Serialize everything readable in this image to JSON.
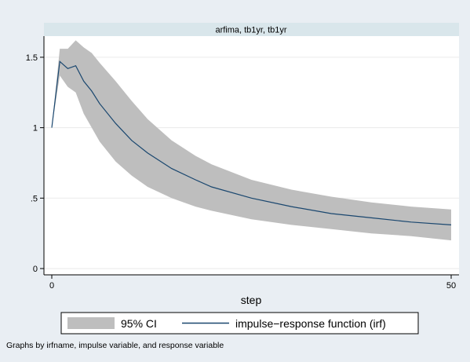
{
  "chart_data": {
    "type": "line",
    "panel_title": "arfima, tb1yr, tb1yr",
    "xlabel": "step",
    "ylabel": "",
    "xlim": [
      0,
      50
    ],
    "ylim": [
      0,
      1.65
    ],
    "x_ticks": [
      0,
      50
    ],
    "x_tick_labels": [
      "0",
      "50"
    ],
    "y_ticks": [
      0,
      0.5,
      1,
      1.5
    ],
    "y_tick_labels": [
      "0",
      ".5",
      "1",
      "1.5"
    ],
    "grid": true,
    "legend_position": "bottom",
    "series": [
      {
        "name": "95% CI",
        "kind": "band",
        "color": "#bebebe",
        "x": [
          0,
          1,
          2,
          3,
          4,
          5,
          6,
          8,
          10,
          12,
          15,
          18,
          20,
          25,
          30,
          35,
          40,
          45,
          50
        ],
        "lower": [
          1.0,
          1.37,
          1.29,
          1.25,
          1.1,
          1.0,
          0.9,
          0.76,
          0.66,
          0.58,
          0.5,
          0.44,
          0.41,
          0.35,
          0.31,
          0.28,
          0.25,
          0.23,
          0.2
        ],
        "upper": [
          1.0,
          1.56,
          1.56,
          1.62,
          1.57,
          1.53,
          1.46,
          1.33,
          1.19,
          1.06,
          0.91,
          0.8,
          0.74,
          0.63,
          0.56,
          0.51,
          0.47,
          0.44,
          0.42
        ]
      },
      {
        "name": "impulse−response function (irf)",
        "kind": "line",
        "color": "#1a476f",
        "x": [
          0,
          1,
          2,
          3,
          4,
          5,
          6,
          8,
          10,
          12,
          15,
          18,
          20,
          25,
          30,
          35,
          40,
          45,
          50
        ],
        "values": [
          1.0,
          1.47,
          1.42,
          1.44,
          1.33,
          1.26,
          1.17,
          1.03,
          0.91,
          0.82,
          0.71,
          0.63,
          0.58,
          0.5,
          0.44,
          0.39,
          0.36,
          0.33,
          0.31
        ]
      }
    ],
    "legend": [
      {
        "label": "95% CI",
        "swatch": "band"
      },
      {
        "label": "impulse−response function (irf)",
        "swatch": "line"
      }
    ],
    "note": "Graphs by irfname, impulse variable, and response variable"
  },
  "colors": {
    "background": "#e9eef3",
    "plot_background": "#ffffff",
    "panel_header": "#d9e6eb",
    "band": "#bebebe",
    "line": "#1a476f"
  }
}
